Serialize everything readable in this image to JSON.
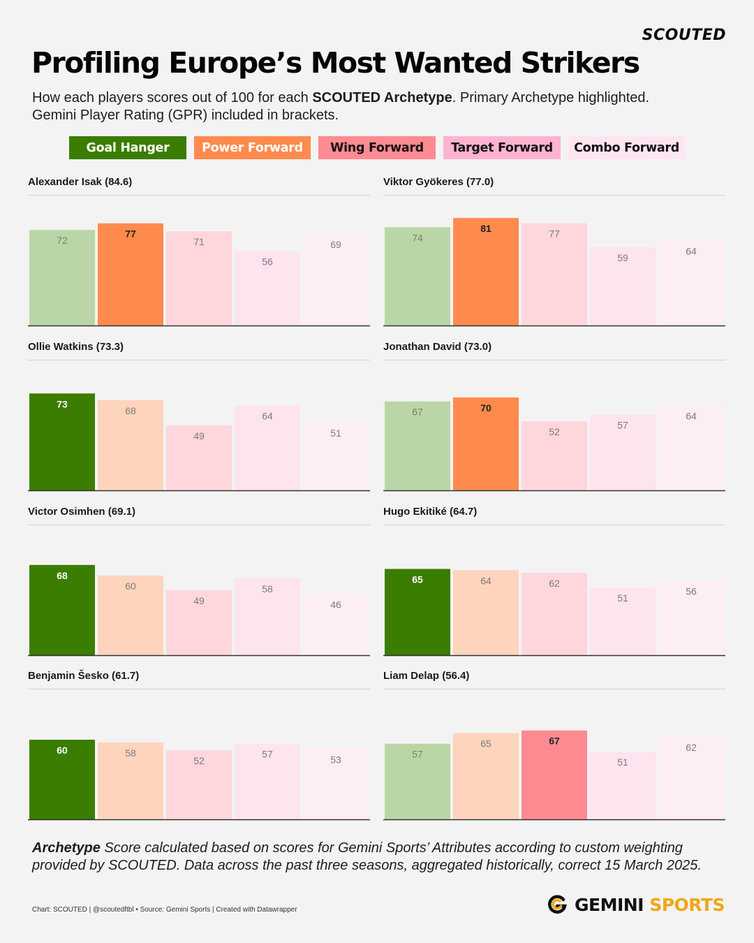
{
  "brand": "SCOUTED",
  "title": "Profiling Europe’s Most Wanted Strikers",
  "subtitle": {
    "part1": "How each players scores out of 100 for each ",
    "bold": "SCOUTED Archetype",
    "part2": ". Primary Archetype highlighted.",
    "line2": "Gemini Player Rating (GPR) included in brackets."
  },
  "colors": {
    "primary": [
      "#3a7d00",
      "#ff8a4d",
      "#ff8a91",
      "#ffb3d0",
      "#ffe5f2"
    ],
    "secondary": [
      "#bbd6a6",
      "#ffd4bd",
      "#ffd6dc",
      "#fde4ee",
      "#fdeef5"
    ],
    "legend_text": [
      "#ffffff",
      "#ffffff",
      "#111111",
      "#111111",
      "#111111"
    ],
    "axis": "#333333"
  },
  "chart_data": {
    "type": "bar",
    "categories": [
      "Goal Hanger",
      "Power Forward",
      "Wing Forward",
      "Target Forward",
      "Combo Forward"
    ],
    "ylim": [
      0,
      100
    ],
    "panels": [
      {
        "player": "Alexander Isak",
        "gpr": "84.6",
        "values": [
          72,
          77,
          71,
          56,
          69
        ],
        "primary": 1
      },
      {
        "player": "Viktor Gyökeres",
        "gpr": "77.0",
        "values": [
          74,
          81,
          77,
          59,
          64
        ],
        "primary": 1
      },
      {
        "player": "Ollie Watkins",
        "gpr": "73.3",
        "values": [
          73,
          68,
          49,
          64,
          51
        ],
        "primary": 0
      },
      {
        "player": "Jonathan David",
        "gpr": "73.0",
        "values": [
          67,
          70,
          52,
          57,
          64
        ],
        "primary": 1
      },
      {
        "player": "Victor Osimhen",
        "gpr": "69.1",
        "values": [
          68,
          60,
          49,
          58,
          46
        ],
        "primary": 0
      },
      {
        "player": "Hugo Ekitiké",
        "gpr": "64.7",
        "values": [
          65,
          64,
          62,
          51,
          56
        ],
        "primary": 0
      },
      {
        "player": "Benjamin Šesko",
        "gpr": "61.7",
        "values": [
          60,
          58,
          52,
          57,
          53
        ],
        "primary": 0
      },
      {
        "player": "Liam Delap",
        "gpr": "56.4",
        "values": [
          57,
          65,
          67,
          51,
          62
        ],
        "primary": 2
      }
    ]
  },
  "footnote": {
    "bold": "Archetype",
    "text": " Score calculated based on scores for Gemini Sports’ Attributes according to custom weighting provided by SCOUTED. Data across the past three seasons, aggregated historically, correct 15 March 2025."
  },
  "credits": "Chart: SCOUTED | @scoutedftbl • Source: Gemini Sports | Created with Datawrapper",
  "logo": {
    "word1": "GEMINI",
    "word2": "SPORTS"
  }
}
